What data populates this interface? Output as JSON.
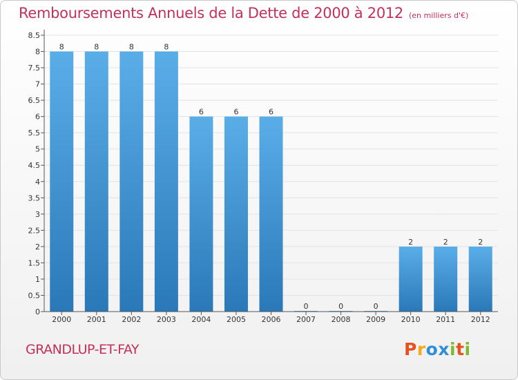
{
  "header": {
    "title": "Remboursements Annuels de la Dette de 2000 à 2012",
    "subtitle": "(en milliers d'€)"
  },
  "footer": {
    "commune": "GRANDLUP-ET-FAY",
    "logo_text": "Proxiti",
    "logo_colors": [
      "#e8501f",
      "#f7a81b",
      "#2f8fd6",
      "#2f8fd6",
      "#7cba2f",
      "#e8501f",
      "#7cba2f"
    ]
  },
  "colors": {
    "title": "#c3305a",
    "bar_light": "#5aaee8",
    "bar_dark": "#2a78b8",
    "grid": "#e3e3e3",
    "axis": "#555555"
  },
  "chart_data": {
    "type": "bar",
    "title": "Remboursements Annuels de la Dette de 2000 à 2012",
    "subtitle": "(en milliers d'€)",
    "categories": [
      "2000",
      "2001",
      "2002",
      "2003",
      "2004",
      "2005",
      "2006",
      "2007",
      "2008",
      "2009",
      "2010",
      "2011",
      "2012"
    ],
    "values": [
      8,
      8,
      8,
      8,
      6,
      6,
      6,
      0,
      0,
      0,
      2,
      2,
      2
    ],
    "value_labels": [
      "8",
      "8",
      "8",
      "8",
      "6",
      "6",
      "6",
      "0",
      "0",
      "0",
      "2",
      "2",
      "2"
    ],
    "xlabel": "",
    "ylabel": "",
    "ylim": [
      0,
      8.5
    ],
    "yticks": [
      "0",
      "0.5",
      "1",
      "1.5",
      "2",
      "2.5",
      "3",
      "3.5",
      "4",
      "4.5",
      "5",
      "5.5",
      "6",
      "6.5",
      "7",
      "7.5",
      "8",
      "8.5"
    ],
    "grid": true,
    "legend": "none"
  }
}
